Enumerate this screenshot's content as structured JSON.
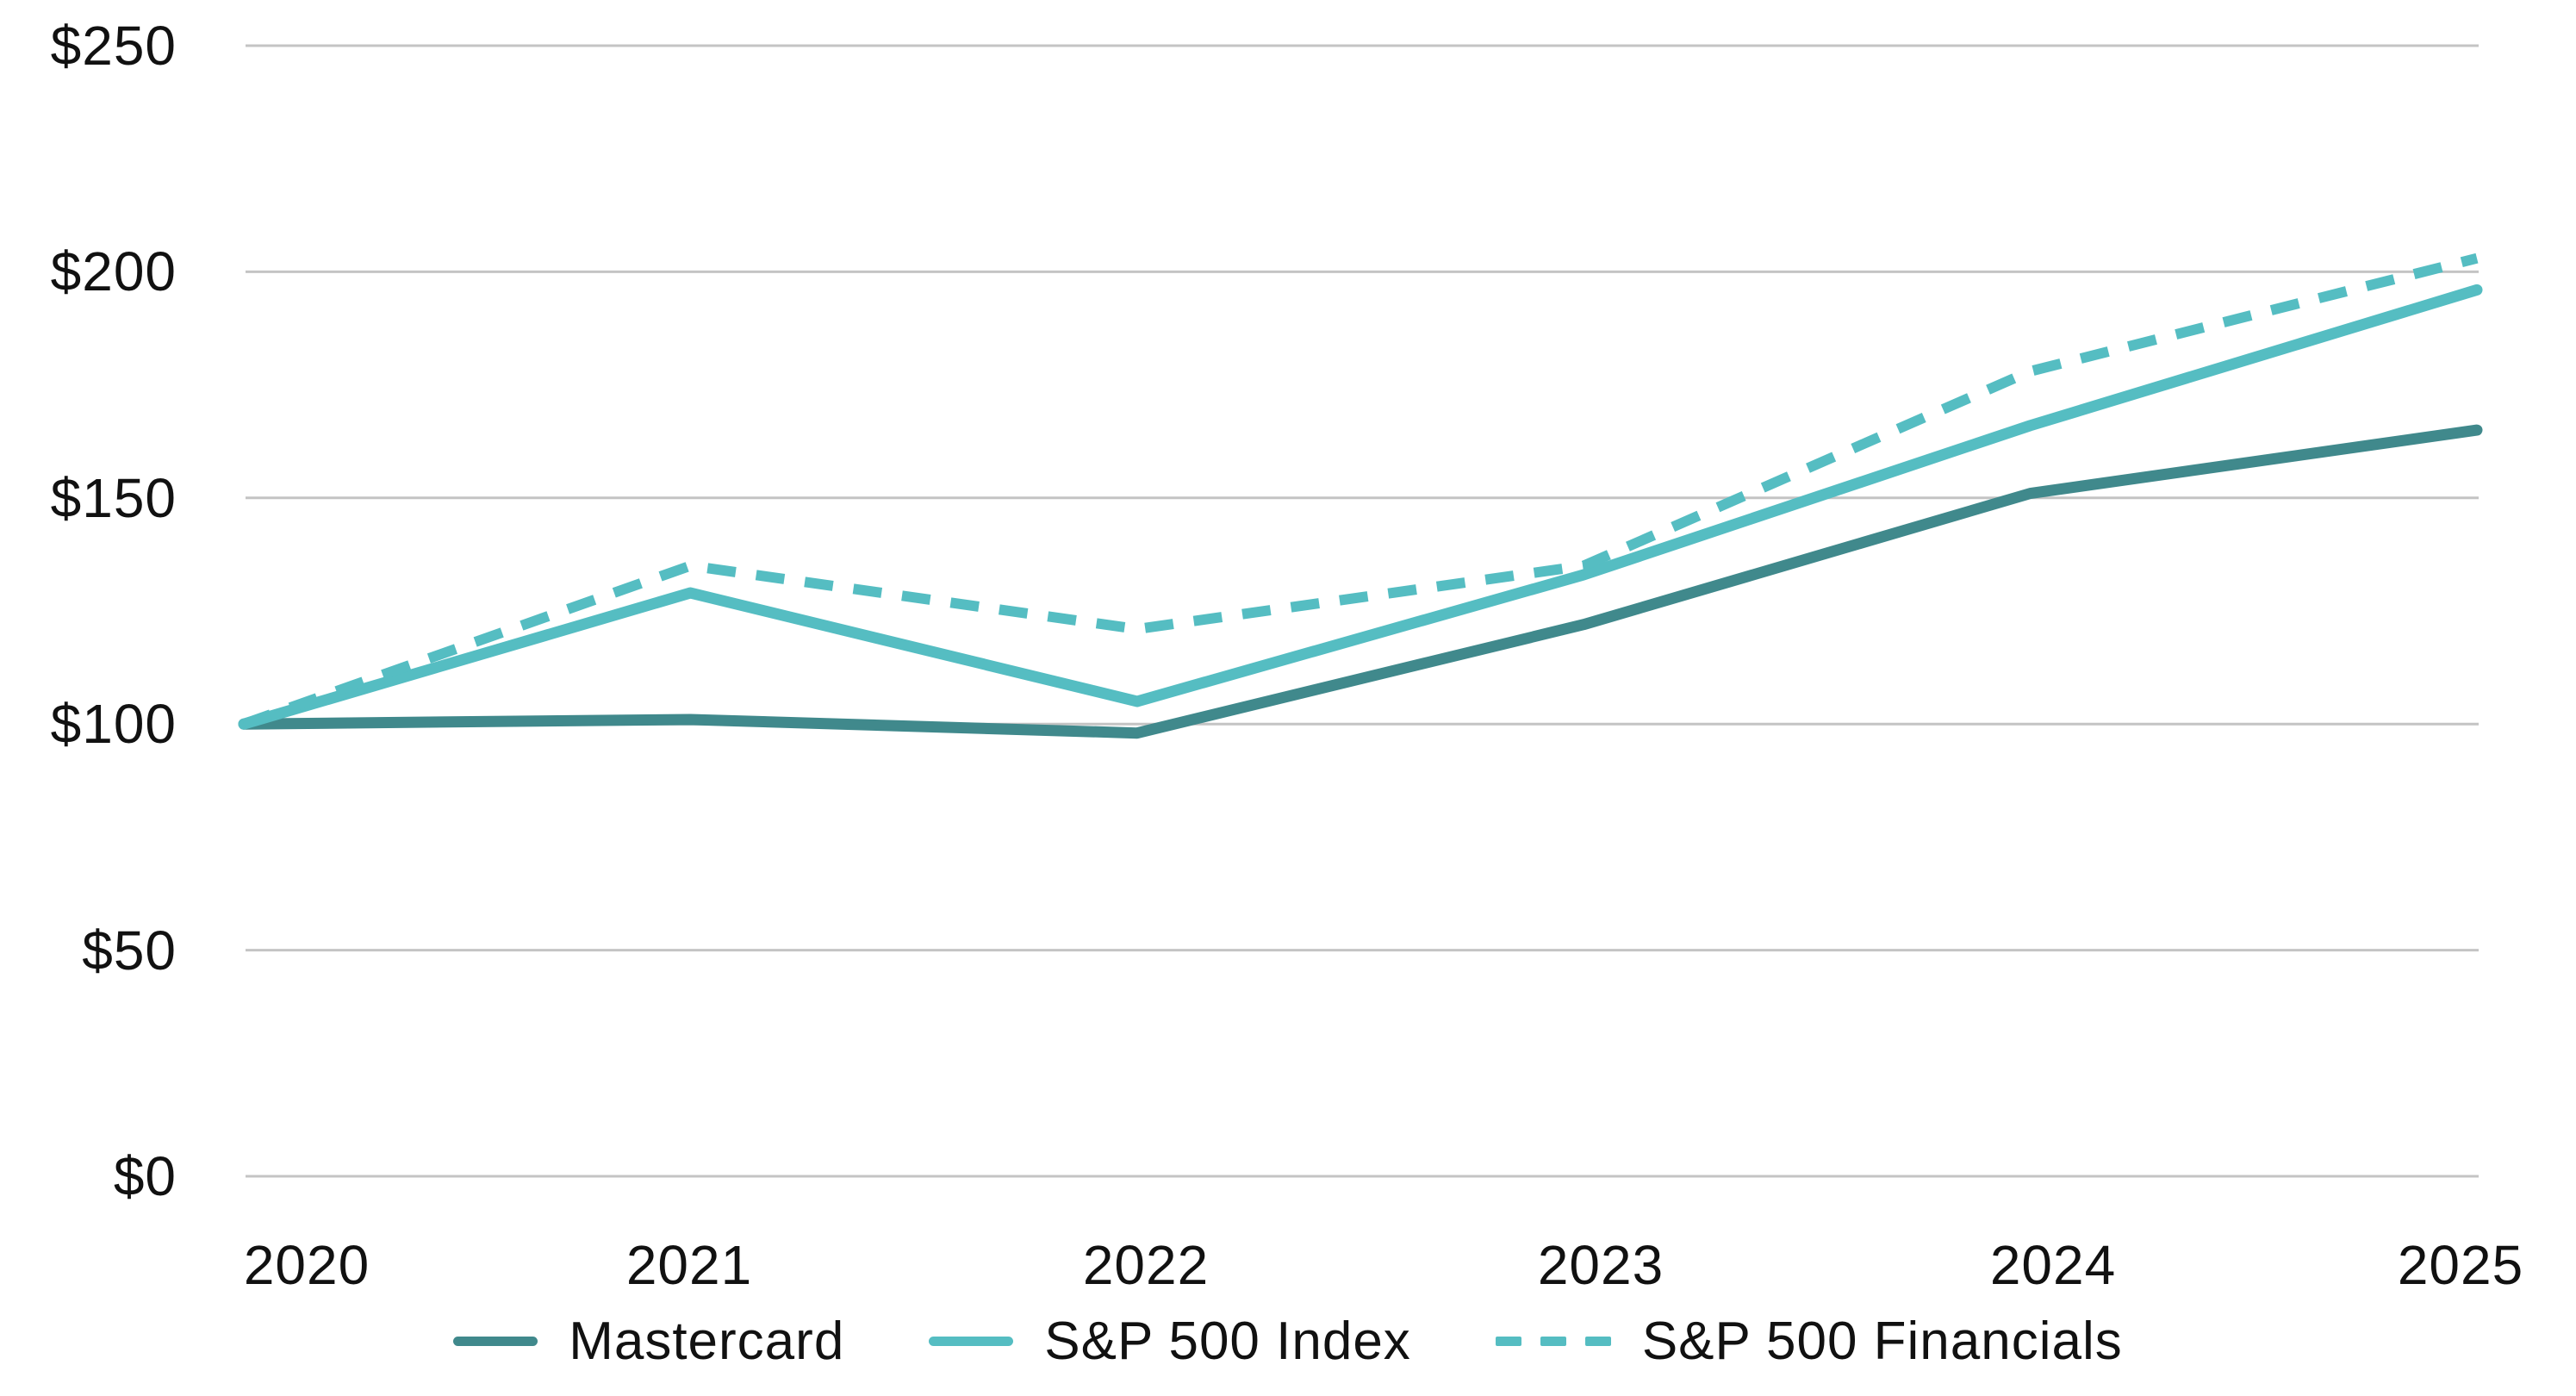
{
  "chart_data": {
    "type": "line",
    "x": [
      "2020",
      "2021",
      "2022",
      "2023",
      "2024",
      "2025"
    ],
    "series": [
      {
        "name": "Mastercard",
        "style": "solid",
        "color": "#40898C",
        "values": [
          100,
          101,
          98,
          122,
          151,
          165
        ]
      },
      {
        "name": "S&P 500 Index",
        "style": "solid",
        "color": "#55BDC2",
        "values": [
          100,
          129,
          105,
          133,
          166,
          196
        ]
      },
      {
        "name": "S&P 500 Financials",
        "style": "dashed",
        "color": "#55BDC2",
        "values": [
          100,
          135,
          121,
          135,
          178,
          203
        ]
      }
    ],
    "y_ticks": [
      {
        "value": 250,
        "label": "$250"
      },
      {
        "value": 200,
        "label": "$200"
      },
      {
        "value": 150,
        "label": "$150"
      },
      {
        "value": 100,
        "label": "$100"
      },
      {
        "value": 50,
        "label": "$50"
      },
      {
        "value": 0,
        "label": "$0"
      }
    ],
    "ylim": [
      0,
      250
    ],
    "grid": "horizontal-only",
    "gridline_color": "#C4C4C4",
    "text_color": "#111111",
    "background": "#FFFFFF",
    "legend_position": "bottom-center"
  }
}
